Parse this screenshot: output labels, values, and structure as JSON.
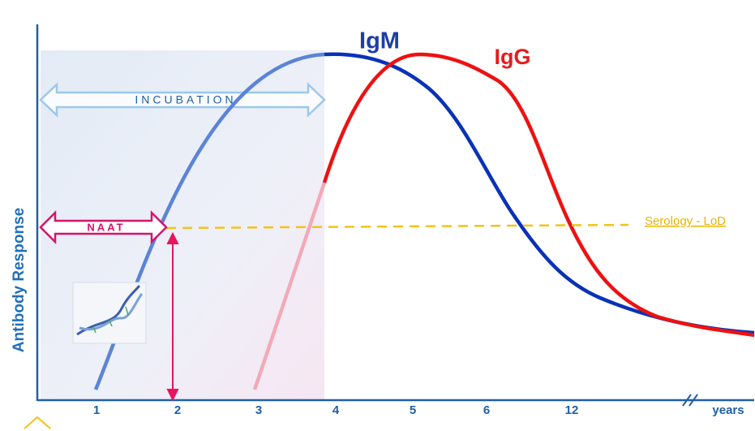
{
  "y_axis_label": "Antibody Response",
  "curves": {
    "igm": "IgM",
    "igg": "IgG"
  },
  "incubation": "INCUBATION",
  "naat": "NAAT",
  "lod": "Serology  - LoD",
  "x_ticks": [
    "1",
    "2",
    "3",
    "4",
    "5",
    "6",
    "12"
  ],
  "x_unit": "years"
}
